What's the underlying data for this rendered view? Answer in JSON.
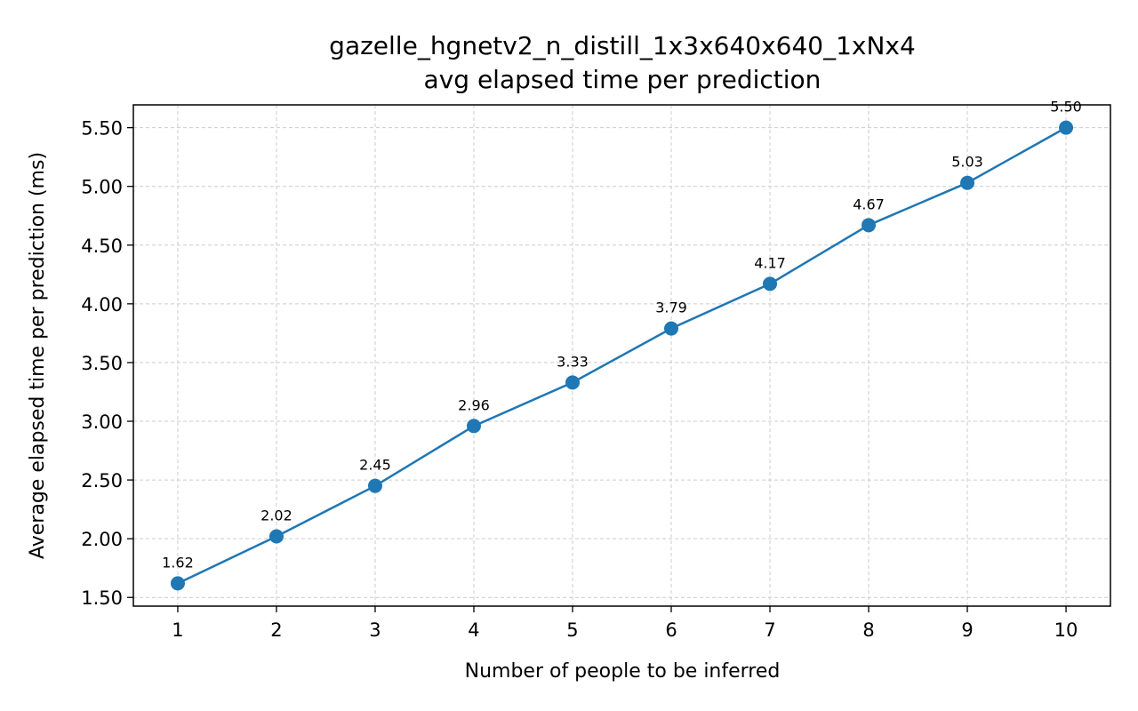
{
  "chart_data": {
    "type": "line",
    "title": "gazelle_hgnetv2_n_distill_1x3x640x640_1xNx4",
    "subtitle": "avg elapsed time per prediction",
    "xlabel": "Number of people to be inferred",
    "ylabel": "Average elapsed time per prediction (ms)",
    "x": [
      1,
      2,
      3,
      4,
      5,
      6,
      7,
      8,
      9,
      10
    ],
    "series": [
      {
        "values": [
          1.62,
          2.02,
          2.45,
          2.96,
          3.33,
          3.79,
          4.17,
          4.67,
          5.03,
          5.5
        ],
        "color": "#1f77b4",
        "marker": "circle"
      }
    ],
    "data_labels": [
      "1.62",
      "2.02",
      "2.45",
      "2.96",
      "3.33",
      "3.79",
      "4.17",
      "4.67",
      "5.03",
      "5.50"
    ],
    "x_ticks": [
      "1",
      "2",
      "3",
      "4",
      "5",
      "6",
      "7",
      "8",
      "9",
      "10"
    ],
    "y_ticks": [
      "1.50",
      "2.00",
      "2.50",
      "3.00",
      "3.50",
      "4.00",
      "4.50",
      "5.00",
      "5.50"
    ],
    "xlim": [
      0.55,
      10.45
    ],
    "ylim": [
      1.426,
      5.694
    ],
    "grid": true,
    "legend": "none"
  }
}
